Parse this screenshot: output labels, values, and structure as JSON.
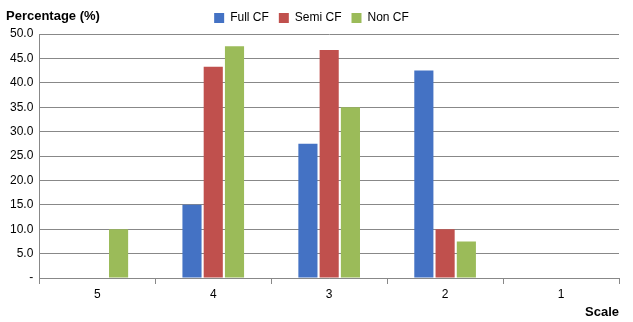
{
  "chart_data": {
    "type": "bar",
    "y_label": "Percentage (%)",
    "x_label": "Scale",
    "categories": [
      "5",
      "4",
      "3",
      "2",
      "1"
    ],
    "series": [
      {
        "name": "Full CF",
        "color": "#4472c4",
        "values": [
          0,
          15.0,
          27.5,
          42.5,
          0
        ]
      },
      {
        "name": "Semi CF",
        "color": "#c0504d",
        "values": [
          0,
          43.3,
          46.7,
          10.0,
          0
        ]
      },
      {
        "name": "Non CF",
        "color": "#9bbb59",
        "values": [
          10.0,
          47.5,
          35.0,
          7.5,
          0
        ]
      }
    ],
    "ylim": [
      0,
      50
    ],
    "yticks": [
      {
        "value": 0,
        "label": "-"
      },
      {
        "value": 5,
        "label": "5.0"
      },
      {
        "value": 10,
        "label": "10.0"
      },
      {
        "value": 15,
        "label": "15.0"
      },
      {
        "value": 20,
        "label": "20.0"
      },
      {
        "value": 25,
        "label": "25.0"
      },
      {
        "value": 30,
        "label": "30.0"
      },
      {
        "value": 35,
        "label": "35.0"
      },
      {
        "value": 40,
        "label": "40.0"
      },
      {
        "value": 45,
        "label": "45.0"
      },
      {
        "value": 50,
        "label": "50.0"
      }
    ],
    "grid": true,
    "legend": "top"
  }
}
